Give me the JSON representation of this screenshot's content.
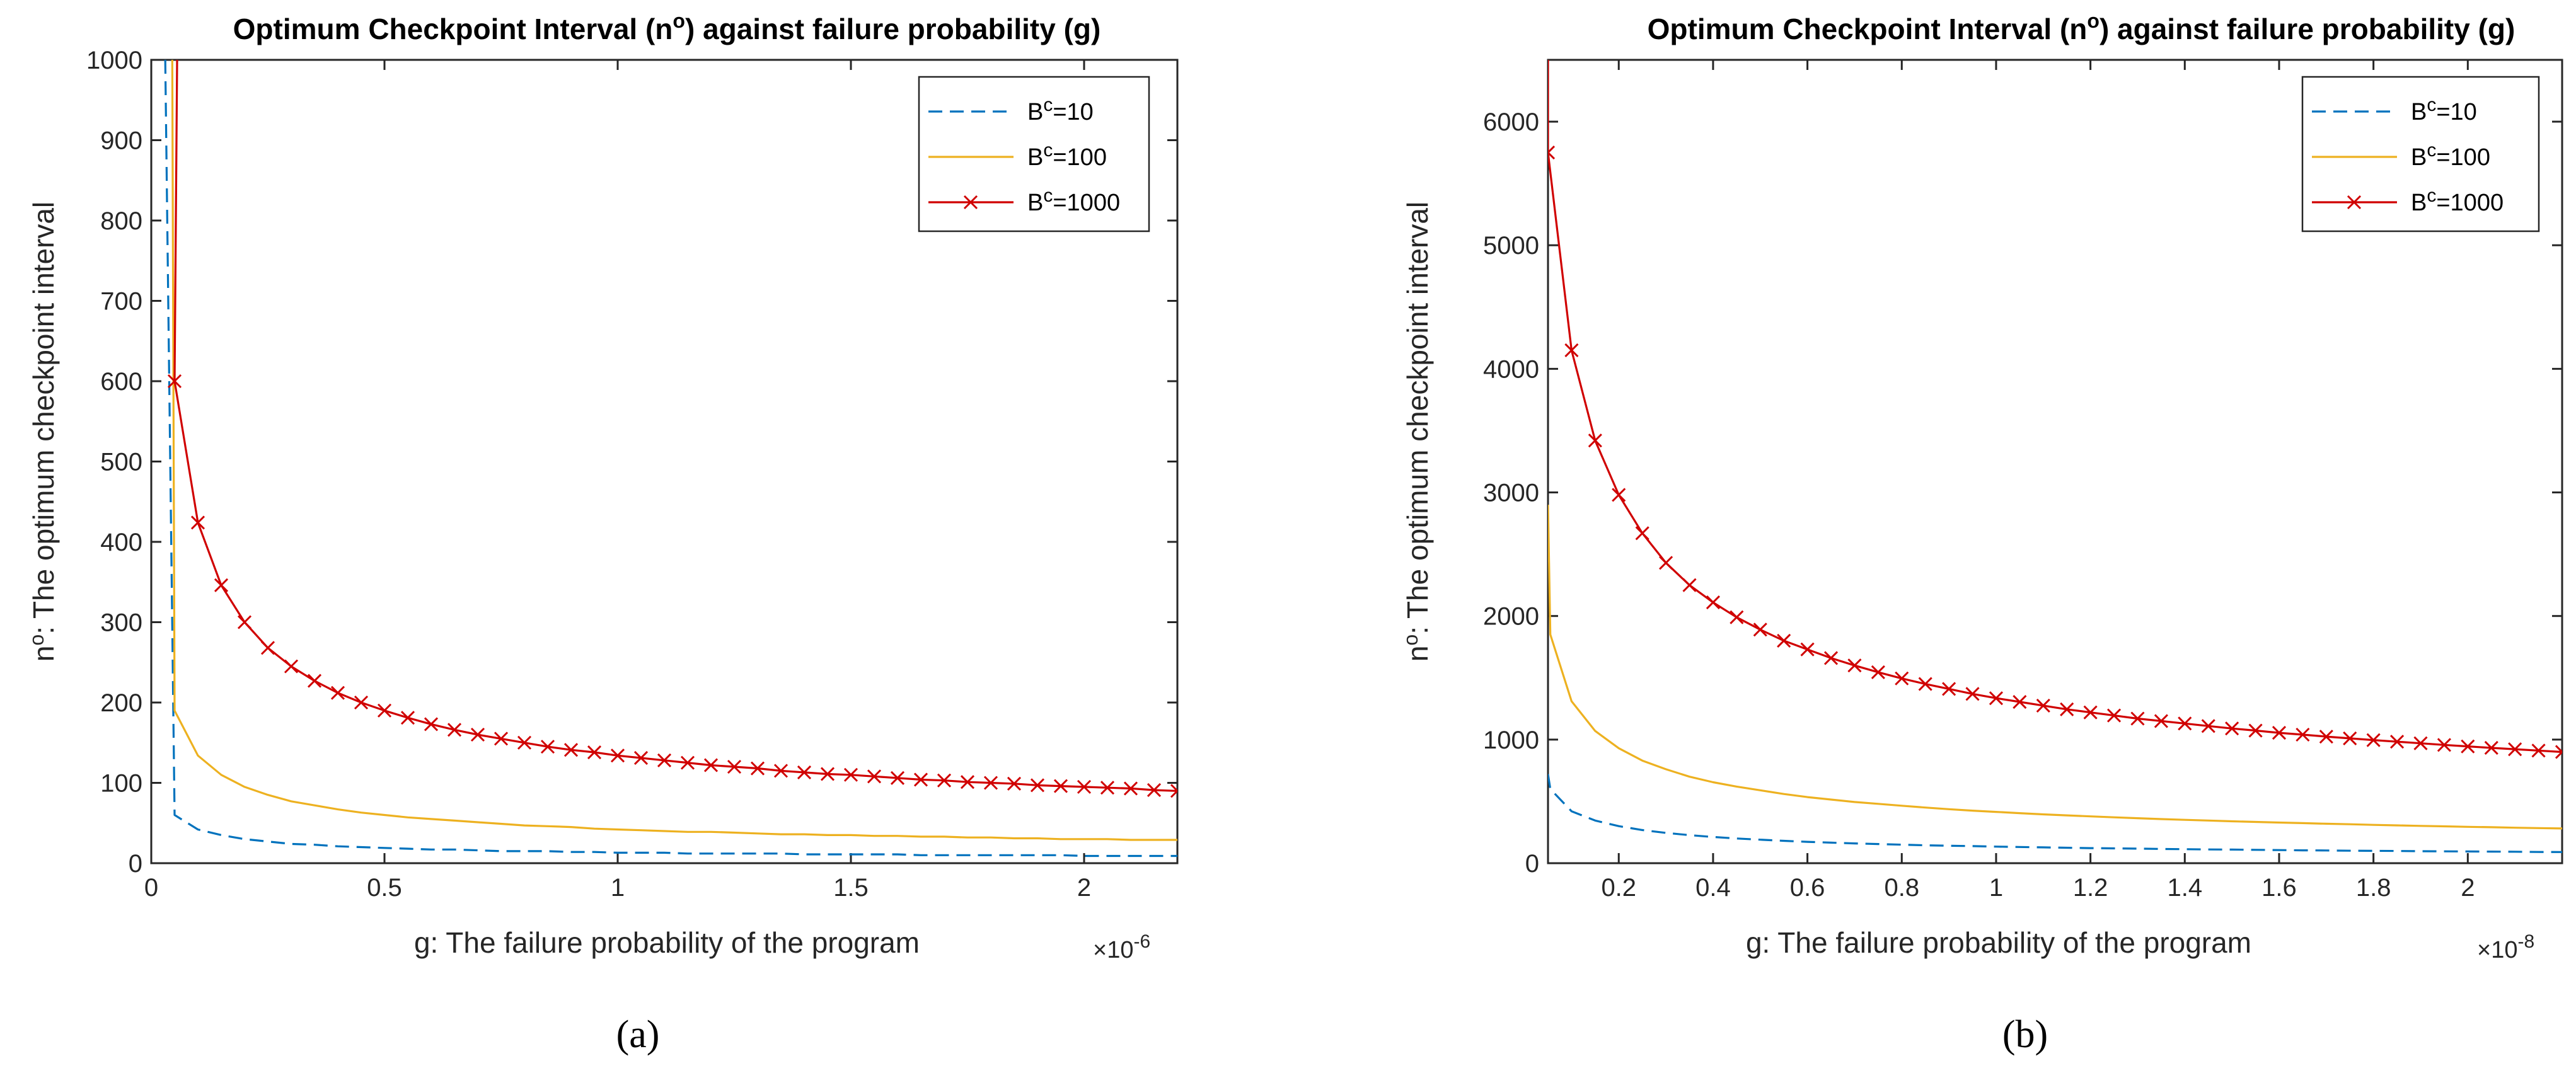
{
  "chart_data": [
    {
      "type": "line",
      "panel_label": "(a)",
      "title": "Optimum Checkpoint Interval (n",
      "title_sup": "o",
      "title_tail": ") against failure probability (g)",
      "xlabel": "g: The failure probability of the program",
      "ylabel": "n",
      "ylabel_sup": "o",
      "ylabel_tail": ": The optimum checkpoint interval",
      "x_scale_label": "×10",
      "x_scale_exp": "-6",
      "xlim": [
        0,
        2.2
      ],
      "ylim": [
        0,
        1000
      ],
      "xticks": [
        0,
        0.5,
        1,
        1.5,
        2
      ],
      "xtick_labels": [
        "0",
        "0.5",
        "1",
        "1.5",
        "2"
      ],
      "yticks": [
        0,
        100,
        200,
        300,
        400,
        500,
        600,
        700,
        800,
        900,
        1000
      ],
      "ytick_labels": [
        "0",
        "100",
        "200",
        "300",
        "400",
        "500",
        "600",
        "700",
        "800",
        "900",
        "1000"
      ],
      "legend_position": "top-right",
      "series": [
        {
          "name": "B",
          "name_sup": "c",
          "name_tail": "=10",
          "color": "#0072BD",
          "style": "dashed",
          "marker": "none",
          "x": [
            0.03,
            0.05,
            0.1,
            0.15,
            0.2,
            0.25,
            0.3,
            0.35,
            0.4,
            0.45,
            0.5,
            0.55,
            0.6,
            0.65,
            0.7,
            0.75,
            0.8,
            0.85,
            0.9,
            0.95,
            1.0,
            1.05,
            1.1,
            1.15,
            1.2,
            1.25,
            1.3,
            1.35,
            1.4,
            1.45,
            1.5,
            1.55,
            1.6,
            1.65,
            1.7,
            1.75,
            1.8,
            1.85,
            1.9,
            1.95,
            2.0,
            2.05,
            2.1,
            2.15,
            2.2
          ],
          "values": [
            1000,
            60,
            42,
            35,
            30,
            27,
            24,
            23,
            21,
            20,
            19,
            18,
            17,
            17,
            16,
            15,
            15,
            15,
            14,
            14,
            13,
            13,
            13,
            12,
            12,
            12,
            12,
            12,
            11,
            11,
            11,
            11,
            11,
            10,
            10,
            10,
            10,
            10,
            10,
            10,
            9,
            9,
            9,
            9,
            9
          ]
        },
        {
          "name": "B",
          "name_sup": "c",
          "name_tail": "=100",
          "color": "#EDB120",
          "style": "solid",
          "marker": "none",
          "x": [
            0.045,
            0.05,
            0.1,
            0.15,
            0.2,
            0.25,
            0.3,
            0.35,
            0.4,
            0.45,
            0.5,
            0.55,
            0.6,
            0.65,
            0.7,
            0.75,
            0.8,
            0.85,
            0.9,
            0.95,
            1.0,
            1.05,
            1.1,
            1.15,
            1.2,
            1.25,
            1.3,
            1.35,
            1.4,
            1.45,
            1.5,
            1.55,
            1.6,
            1.65,
            1.7,
            1.75,
            1.8,
            1.85,
            1.9,
            1.95,
            2.0,
            2.05,
            2.1,
            2.15,
            2.2
          ],
          "values": [
            1000,
            190,
            134,
            110,
            95,
            85,
            77,
            72,
            67,
            63,
            60,
            57,
            55,
            53,
            51,
            49,
            47,
            46,
            45,
            43,
            42,
            41,
            40,
            39,
            39,
            38,
            37,
            36,
            36,
            35,
            35,
            34,
            34,
            33,
            33,
            32,
            32,
            31,
            31,
            30,
            30,
            30,
            29,
            29,
            29
          ]
        },
        {
          "name": "B",
          "name_sup": "c",
          "name_tail": "=1000",
          "color": "#D00000",
          "style": "solid",
          "marker": "x",
          "x": [
            0.05,
            0.1,
            0.15,
            0.2,
            0.25,
            0.3,
            0.35,
            0.4,
            0.45,
            0.5,
            0.55,
            0.6,
            0.65,
            0.7,
            0.75,
            0.8,
            0.85,
            0.9,
            0.95,
            1.0,
            1.05,
            1.1,
            1.15,
            1.2,
            1.25,
            1.3,
            1.35,
            1.4,
            1.45,
            1.5,
            1.55,
            1.6,
            1.65,
            1.7,
            1.75,
            1.8,
            1.85,
            1.9,
            1.95,
            2.0,
            2.05,
            2.1,
            2.15,
            2.2
          ],
          "values": [
            600,
            424,
            346,
            300,
            268,
            245,
            227,
            212,
            200,
            190,
            181,
            173,
            166,
            160,
            155,
            150,
            145,
            141,
            138,
            134,
            131,
            128,
            125,
            122,
            120,
            118,
            115,
            113,
            111,
            110,
            108,
            106,
            104,
            103,
            101,
            100,
            99,
            97,
            96,
            95,
            94,
            93,
            91,
            90
          ],
          "extra_line_top": [
            0.05,
            1000
          ]
        }
      ]
    },
    {
      "type": "line",
      "panel_label": "(b)",
      "title": "Optimum Checkpoint Interval (n",
      "title_sup": "o",
      "title_tail": ") against failure probability (g)",
      "xlabel": "g: The failure probability of the program",
      "ylabel": "n",
      "ylabel_sup": "o",
      "ylabel_tail": ": The optimum checkpoint interval",
      "x_scale_label": "×10",
      "x_scale_exp": "-8",
      "xlim": [
        0.05,
        2.2
      ],
      "ylim": [
        0,
        6500
      ],
      "xticks": [
        0.2,
        0.4,
        0.6,
        0.8,
        1,
        1.2,
        1.4,
        1.6,
        1.8,
        2
      ],
      "xtick_labels": [
        "0.2",
        "0.4",
        "0.6",
        "0.8",
        "1",
        "1.2",
        "1.4",
        "1.6",
        "1.8",
        "2"
      ],
      "yticks": [
        0,
        1000,
        2000,
        3000,
        4000,
        5000,
        6000
      ],
      "ytick_labels": [
        "0",
        "1000",
        "2000",
        "3000",
        "4000",
        "5000",
        "6000"
      ],
      "legend_position": "top-right",
      "series": [
        {
          "name": "B",
          "name_sup": "c",
          "name_tail": "=10",
          "color": "#0072BD",
          "style": "dashed",
          "marker": "none",
          "x": [
            0.05,
            0.055,
            0.1,
            0.15,
            0.2,
            0.25,
            0.3,
            0.35,
            0.4,
            0.45,
            0.5,
            0.55,
            0.6,
            0.65,
            0.7,
            0.75,
            0.8,
            0.85,
            0.9,
            0.95,
            1.0,
            1.05,
            1.1,
            1.15,
            1.2,
            1.25,
            1.3,
            1.35,
            1.4,
            1.45,
            1.5,
            1.55,
            1.6,
            1.65,
            1.7,
            1.75,
            1.8,
            1.85,
            1.9,
            1.95,
            2.0,
            2.05,
            2.1,
            2.15,
            2.2
          ],
          "values": [
            720,
            600,
            420,
            345,
            300,
            268,
            245,
            227,
            212,
            200,
            190,
            181,
            173,
            166,
            160,
            155,
            150,
            145,
            141,
            138,
            134,
            131,
            128,
            125,
            122,
            120,
            118,
            115,
            113,
            111,
            110,
            108,
            106,
            104,
            103,
            101,
            100,
            99,
            97,
            96,
            95,
            94,
            93,
            91,
            90
          ]
        },
        {
          "name": "B",
          "name_sup": "c",
          "name_tail": "=100",
          "color": "#EDB120",
          "style": "solid",
          "marker": "none",
          "x": [
            0.05,
            0.055,
            0.1,
            0.15,
            0.2,
            0.25,
            0.3,
            0.35,
            0.4,
            0.45,
            0.5,
            0.55,
            0.6,
            0.65,
            0.7,
            0.75,
            0.8,
            0.85,
            0.9,
            0.95,
            1.0,
            1.05,
            1.1,
            1.15,
            1.2,
            1.25,
            1.3,
            1.35,
            1.4,
            1.45,
            1.5,
            1.55,
            1.6,
            1.65,
            1.7,
            1.75,
            1.8,
            1.85,
            1.9,
            1.95,
            2.0,
            2.05,
            2.1,
            2.15,
            2.2
          ],
          "values": [
            2900,
            1850,
            1310,
            1070,
            930,
            830,
            760,
            700,
            655,
            620,
            590,
            560,
            535,
            515,
            495,
            480,
            465,
            450,
            437,
            425,
            415,
            405,
            395,
            387,
            379,
            371,
            364,
            357,
            351,
            345,
            339,
            334,
            329,
            324,
            319,
            315,
            310,
            306,
            302,
            298,
            294,
            291,
            287,
            284,
            281
          ]
        },
        {
          "name": "B",
          "name_sup": "c",
          "name_tail": "=1000",
          "color": "#D00000",
          "style": "solid",
          "marker": "x",
          "x": [
            0.05,
            0.1,
            0.15,
            0.2,
            0.25,
            0.3,
            0.35,
            0.4,
            0.45,
            0.5,
            0.55,
            0.6,
            0.65,
            0.7,
            0.75,
            0.8,
            0.85,
            0.9,
            0.95,
            1.0,
            1.05,
            1.1,
            1.15,
            1.2,
            1.25,
            1.3,
            1.35,
            1.4,
            1.45,
            1.5,
            1.55,
            1.6,
            1.65,
            1.7,
            1.75,
            1.8,
            1.85,
            1.9,
            1.95,
            2.0,
            2.05,
            2.1,
            2.15,
            2.2
          ],
          "values": [
            5750,
            4150,
            3420,
            2980,
            2670,
            2430,
            2250,
            2110,
            1990,
            1890,
            1800,
            1730,
            1660,
            1600,
            1545,
            1495,
            1450,
            1410,
            1370,
            1335,
            1305,
            1275,
            1245,
            1220,
            1195,
            1170,
            1150,
            1130,
            1110,
            1090,
            1073,
            1055,
            1040,
            1024,
            1010,
            996,
            983,
            970,
            957,
            945,
            933,
            922,
            911,
            900
          ],
          "extra_line_top": [
            0.05,
            6500
          ]
        }
      ]
    }
  ]
}
